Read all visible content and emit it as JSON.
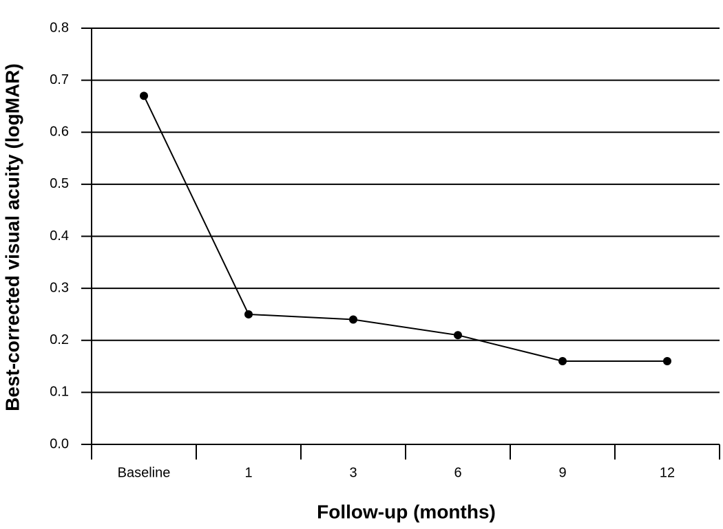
{
  "chart_data": {
    "type": "line",
    "x_label": "Follow-up (months)",
    "y_label": "Best-corrected visual acuity (logMAR)",
    "categories": [
      "Baseline",
      "1",
      "3",
      "6",
      "9",
      "12"
    ],
    "values": [
      0.67,
      0.25,
      0.24,
      0.21,
      0.16,
      0.16
    ],
    "color": "#000000",
    "ylim": [
      0,
      0.8
    ],
    "yticks": [
      {
        "value": 0,
        "label": "0.0"
      },
      0.1,
      0.2,
      0.3,
      0.4,
      0.5,
      0.6,
      0.7,
      0.8
    ],
    "grid": true
  }
}
